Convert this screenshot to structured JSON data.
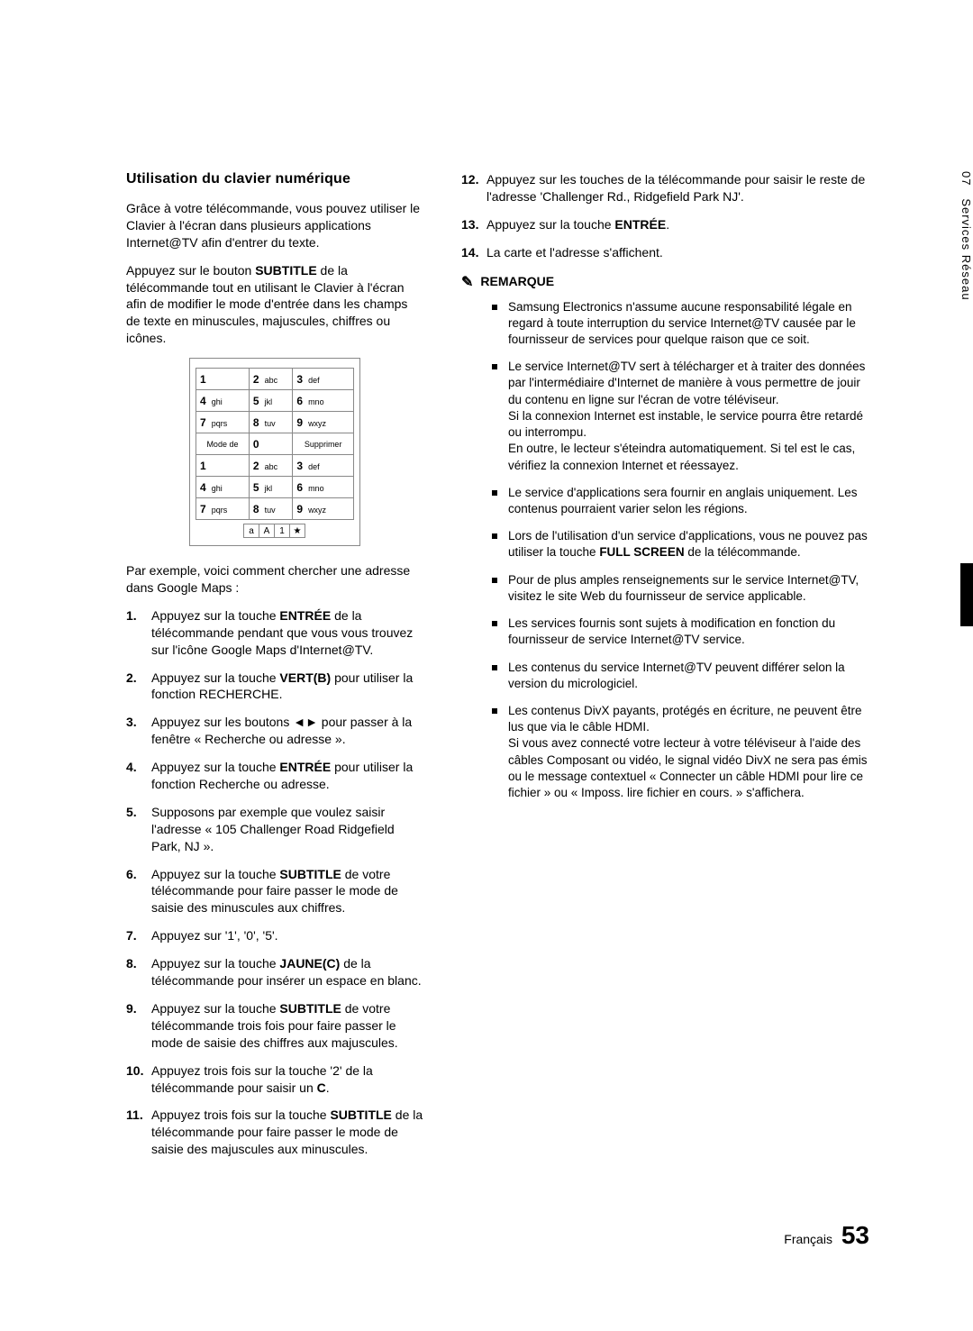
{
  "sideTab": {
    "chapter": "07",
    "label": "Services Réseau"
  },
  "title": "Utilisation du clavier numérique",
  "intro1": "Grâce à votre télécommande, vous pouvez utiliser le Clavier à l'écran dans plusieurs applications Internet@TV afin d'entrer du texte.",
  "intro2_a": "Appuyez sur le bouton ",
  "intro2_bold": "SUBTITLE",
  "intro2_b": " de la télécommande tout en utilisant le Clavier à l'écran afin de modifier le mode d'entrée dans les champs de texte en minuscules, majuscules, chiffres ou icônes.",
  "keypad": {
    "rows": [
      [
        {
          "n": "1",
          "l": ""
        },
        {
          "n": "2",
          "l": "abc"
        },
        {
          "n": "3",
          "l": "def"
        }
      ],
      [
        {
          "n": "4",
          "l": "ghi"
        },
        {
          "n": "5",
          "l": "jkl"
        },
        {
          "n": "6",
          "l": "mno"
        }
      ],
      [
        {
          "n": "7",
          "l": "pqrs"
        },
        {
          "n": "8",
          "l": "tuv"
        },
        {
          "n": "9",
          "l": "wxyz"
        }
      ]
    ],
    "modeLabel": "Mode de",
    "zero": "0",
    "deleteLabel": "Supprimer",
    "modeBar": [
      "a",
      "A",
      "1",
      "★"
    ]
  },
  "example_a": "Par exemple, voici comment chercher une adresse dans Google Maps :",
  "steps": [
    {
      "pre": "Appuyez sur la touche ",
      "bold": "ENTRÉE",
      "post": " de la télécommande pendant que vous vous trouvez sur l'icône Google Maps d'Internet@TV."
    },
    {
      "pre": "Appuyez sur la touche ",
      "bold": "VERT(B)",
      "post": " pour utiliser la fonction RECHERCHE."
    },
    {
      "pre": "Appuyez sur les boutons ◄► pour passer à la fenêtre « Recherche ou adresse ».",
      "bold": "",
      "post": ""
    },
    {
      "pre": "Appuyez sur la touche ",
      "bold": "ENTRÉE",
      "post": " pour utiliser la fonction Recherche ou adresse."
    },
    {
      "pre": "Supposons par exemple que voulez saisir l'adresse « 105 Challenger Road Ridgefield Park, NJ ».",
      "bold": "",
      "post": ""
    },
    {
      "pre": "Appuyez sur la touche ",
      "bold": "SUBTITLE",
      "post": " de votre télécommande pour faire passer le mode de saisie des minuscules aux chiffres."
    },
    {
      "pre": "Appuyez sur '1', '0', '5'.",
      "bold": "",
      "post": ""
    },
    {
      "pre": "Appuyez sur la touche ",
      "bold": "JAUNE(C)",
      "post": " de la télécommande pour insérer un espace en blanc."
    },
    {
      "pre": "Appuyez sur la touche ",
      "bold": "SUBTITLE",
      "post": " de votre télécommande trois fois pour faire passer le mode de saisie des chiffres aux majuscules."
    },
    {
      "pre": "Appuyez trois fois sur la touche '2' de la télécommande pour saisir un ",
      "bold": "C",
      "post": "."
    },
    {
      "pre": "Appuyez trois fois sur la touche ",
      "bold": "SUBTITLE",
      "post": " de la télécommande pour faire passer le mode de saisie des majuscules aux minuscules."
    }
  ],
  "stepsRight": [
    {
      "pre": "Appuyez sur les touches de la télécommande pour saisir le reste de l'adresse 'Challenger Rd., Ridgefield Park NJ'.",
      "bold": "",
      "post": ""
    },
    {
      "pre": "Appuyez sur la touche ",
      "bold": "ENTRÉE",
      "post": "."
    },
    {
      "pre": "La carte et l'adresse s'affichent.",
      "bold": "",
      "post": ""
    }
  ],
  "remarkHead": "REMARQUE",
  "remarks": [
    "Samsung Electronics n'assume aucune responsabilité légale en regard à toute interruption du service Internet@TV causée par le fournisseur de services pour quelque raison que ce soit.",
    "Le service Internet@TV sert à télécharger et à traiter des données par l'intermédiaire d'Internet de manière à vous permettre de jouir du contenu en ligne sur l'écran de votre téléviseur.\nSi la connexion Internet est instable, le service pourra être retardé ou interrompu.\nEn outre, le lecteur s'éteindra automatiquement. Si tel est le cas, vérifiez la connexion Internet et réessayez.",
    "Le service d'applications sera fournir en anglais uniquement. Les contenus pourraient varier selon les régions.",
    "Lors de l'utilisation d'un service d'applications, vous ne pouvez pas utiliser la touche FULL SCREEN de la télécommande.",
    "Pour de plus amples renseignements sur le service Internet@TV, visitez le site Web du fournisseur de service applicable.",
    "Les services fournis sont sujets à modification en fonction du fournisseur de service Internet@TV service.",
    "Les contenus du service Internet@TV peuvent différer selon la version du micrologiciel.",
    "Les contenus DivX payants, protégés en écriture, ne peuvent être lus que via le câble HDMI.\nSi vous avez connecté votre lecteur à votre téléviseur à l'aide des câbles Composant ou vidéo, le signal vidéo DivX ne sera pas émis ou le message contextuel « Connecter un câble HDMI pour lire ce fichier » ou « Imposs. lire fichier en cours. » s'affichera."
  ],
  "footer": {
    "lang": "Français",
    "page": "53"
  }
}
